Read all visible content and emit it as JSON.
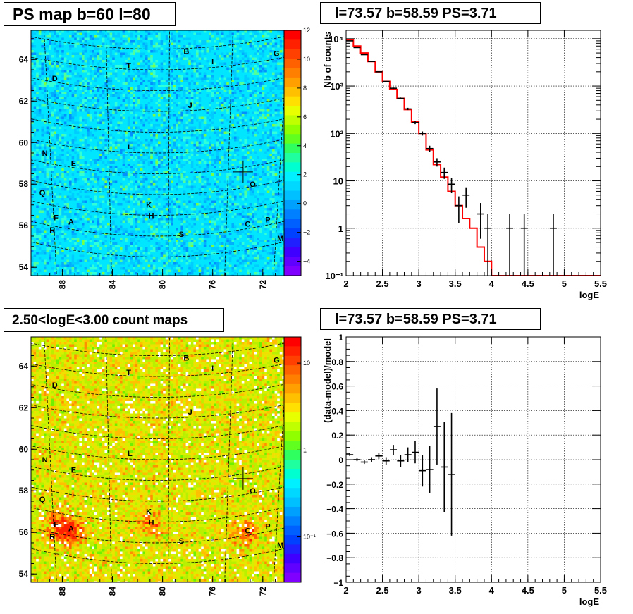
{
  "chart_data": [
    {
      "type": "heatmap",
      "title": "PS map b=60 l=80",
      "x_tick_labels": [
        "88",
        "84",
        "80",
        "76",
        "72"
      ],
      "y_tick_labels": [
        "54",
        "56",
        "58",
        "60",
        "62",
        "64"
      ],
      "xlim": [
        90.5,
        70.3
      ],
      "ylim": [
        53.6,
        65.4
      ],
      "colorbar": {
        "scale": "linear",
        "range": [
          -5,
          12
        ],
        "tick_labels": [
          "12",
          "10",
          "8",
          "6",
          "4",
          "2",
          "0",
          "−2",
          "−4"
        ],
        "tick_values": [
          12,
          10,
          8,
          6,
          4,
          2,
          0,
          -2,
          -4
        ]
      },
      "base_color": "#00e6ff",
      "marker": {
        "lon": 73.57,
        "lat": 58.59
      },
      "sources": [
        {
          "label": "B",
          "lon": 78.1,
          "lat": 64.4
        },
        {
          "label": "G",
          "lon": 70.9,
          "lat": 64.3
        },
        {
          "label": "I",
          "lon": 76.0,
          "lat": 63.9
        },
        {
          "label": "T",
          "lon": 82.7,
          "lat": 63.7
        },
        {
          "label": "D",
          "lon": 88.6,
          "lat": 63.1
        },
        {
          "label": "J",
          "lon": 77.8,
          "lat": 61.8
        },
        {
          "label": "L",
          "lon": 82.6,
          "lat": 59.8
        },
        {
          "label": "N",
          "lon": 89.4,
          "lat": 59.5
        },
        {
          "label": "E",
          "lon": 87.1,
          "lat": 59.0
        },
        {
          "label": "O",
          "lon": 72.8,
          "lat": 58.0
        },
        {
          "label": "Q",
          "lon": 89.6,
          "lat": 57.6
        },
        {
          "label": "K",
          "lon": 81.1,
          "lat": 57.0
        },
        {
          "label": "H",
          "lon": 80.9,
          "lat": 56.5
        },
        {
          "label": "F",
          "lon": 88.5,
          "lat": 56.4
        },
        {
          "label": "A",
          "lon": 87.3,
          "lat": 56.2
        },
        {
          "label": "P",
          "lon": 71.6,
          "lat": 56.3
        },
        {
          "label": "C",
          "lon": 73.2,
          "lat": 56.1
        },
        {
          "label": "R",
          "lon": 88.8,
          "lat": 55.8
        },
        {
          "label": "S",
          "lon": 78.5,
          "lat": 55.6
        },
        {
          "label": "M",
          "lon": 70.6,
          "lat": 55.4
        }
      ]
    },
    {
      "type": "line",
      "title": "l=73.57 b=58.59 PS=3.71",
      "xlabel": "logE",
      "ylabel": "Nb of counts",
      "xlim": [
        2,
        5.5
      ],
      "ylim": [
        0.1,
        15000
      ],
      "yscale": "log",
      "x_tick_labels": [
        "2",
        "2.5",
        "3",
        "3.5",
        "4",
        "4.5",
        "5",
        "5.5"
      ],
      "y_tick_labels": [
        "10⁻¹",
        "1",
        "10",
        "10²",
        "10³",
        "10⁴"
      ],
      "grid": true,
      "series": [
        {
          "kind": "step",
          "color": "#ff0000",
          "bin_edges": [
            2.0,
            2.1,
            2.2,
            2.3,
            2.4,
            2.5,
            2.6,
            2.7,
            2.8,
            2.9,
            3.0,
            3.1,
            3.2,
            3.3,
            3.4,
            3.5,
            3.6,
            3.7,
            3.8,
            3.9,
            4.0,
            4.1,
            4.2,
            4.3,
            4.4,
            4.5,
            4.6,
            4.7,
            4.8,
            4.9,
            5.0,
            5.1,
            5.2,
            5.3,
            5.4,
            5.5
          ],
          "values": [
            9500,
            7000,
            5000,
            3300,
            2000,
            1250,
            850,
            550,
            320,
            175,
            100,
            45,
            22,
            12,
            6,
            3,
            1.6,
            1.0,
            0.4,
            0.2,
            0.1,
            0.1,
            0.1,
            0.1,
            0.1,
            0.1,
            0.1,
            0.1,
            0.1,
            0.1,
            0.1,
            0.1,
            0.1,
            0.1,
            0.1
          ]
        },
        {
          "kind": "errorbar",
          "color": "#000000",
          "x": [
            2.05,
            2.15,
            2.25,
            2.35,
            2.45,
            2.55,
            2.65,
            2.75,
            2.85,
            2.95,
            3.05,
            3.15,
            3.25,
            3.35,
            3.45,
            3.55,
            3.65,
            3.85,
            3.95,
            4.25,
            4.45,
            4.85
          ],
          "y": [
            9000,
            6500,
            4600,
            3300,
            2000,
            1250,
            900,
            550,
            330,
            170,
            100,
            48,
            25,
            15,
            8.5,
            3,
            5,
            2,
            1,
            1,
            1,
            1
          ],
          "yerr_low": [
            90,
            80,
            70,
            60,
            45,
            35,
            30,
            23,
            18,
            13,
            10,
            7,
            5,
            4,
            3,
            1.7,
            2.3,
            1.4,
            0.99,
            0.99,
            0.99,
            0.99
          ],
          "yerr_high": [
            90,
            80,
            70,
            60,
            45,
            35,
            30,
            23,
            18,
            13,
            10,
            7,
            5,
            4,
            3,
            1.7,
            2.3,
            1.4,
            1.0,
            1.0,
            1.0,
            1.0
          ]
        }
      ]
    },
    {
      "type": "heatmap",
      "title": "2.50<logE<3.00 count maps",
      "x_tick_labels": [
        "88",
        "84",
        "80",
        "76",
        "72"
      ],
      "y_tick_labels": [
        "54",
        "56",
        "58",
        "60",
        "62",
        "64"
      ],
      "xlim": [
        90.5,
        70.3
      ],
      "ylim": [
        53.6,
        65.4
      ],
      "colorbar": {
        "scale": "log",
        "range": [
          0.03,
          20
        ],
        "tick_labels": [
          "10",
          "1",
          "10⁻¹"
        ],
        "tick_values": [
          10,
          1,
          0.1
        ]
      },
      "base_color": "#c8f000",
      "hotspots": [
        {
          "label": "A",
          "lon": 87.6,
          "lat": 56.1,
          "strength": 1.0
        },
        {
          "label": "F",
          "lon": 88.3,
          "lat": 56.4,
          "strength": 0.8
        },
        {
          "label": "H",
          "lon": 81.0,
          "lat": 56.4,
          "strength": 0.6
        },
        {
          "label": "C",
          "lon": 73.4,
          "lat": 56.0,
          "strength": 0.7
        }
      ],
      "marker": {
        "lon": 73.57,
        "lat": 58.59
      },
      "sources_same_as_top": true
    },
    {
      "type": "scatter",
      "title": "l=73.57 b=58.59 PS=3.71",
      "xlabel": "logE",
      "ylabel": "(data-model)/model",
      "xlim": [
        2,
        5.5
      ],
      "ylim": [
        -1,
        1
      ],
      "x_tick_labels": [
        "2",
        "2.5",
        "3",
        "3.5",
        "4",
        "4.5",
        "5",
        "5.5"
      ],
      "y_tick_labels": [
        "−1",
        "−0.8",
        "−0.6",
        "−0.4",
        "−0.2",
        "0",
        "0.2",
        "0.4",
        "0.6",
        "0.8",
        "1"
      ],
      "grid": true,
      "points": {
        "x": [
          2.05,
          2.15,
          2.25,
          2.35,
          2.45,
          2.55,
          2.65,
          2.75,
          2.85,
          2.95,
          3.05,
          3.15,
          3.25,
          3.35,
          3.45
        ],
        "y": [
          0.04,
          0.0,
          -0.02,
          0.0,
          0.03,
          -0.01,
          0.08,
          -0.01,
          0.04,
          0.06,
          -0.09,
          -0.08,
          0.27,
          -0.06,
          -0.12
        ],
        "yerr": [
          0.01,
          0.012,
          0.015,
          0.02,
          0.025,
          0.03,
          0.04,
          0.05,
          0.06,
          0.09,
          0.13,
          0.19,
          0.31,
          0.37,
          0.5
        ]
      }
    }
  ]
}
